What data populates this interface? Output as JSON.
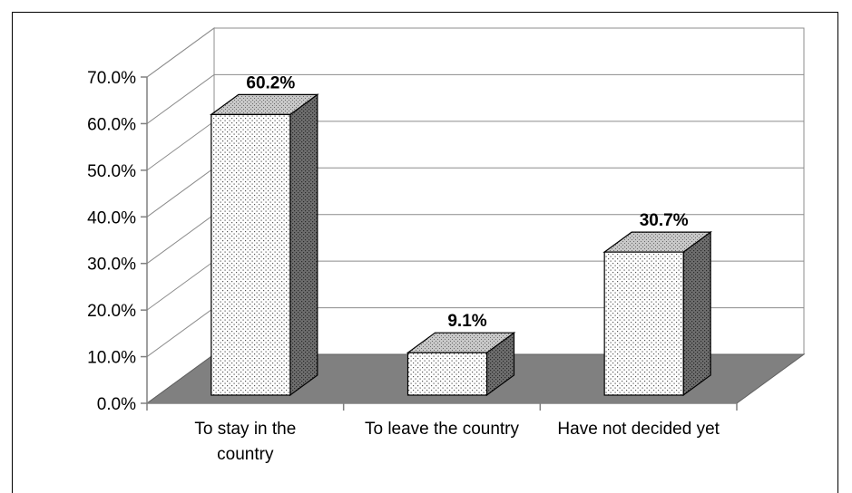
{
  "chart_data": {
    "type": "bar",
    "style": "3d-column",
    "categories": [
      "To stay in the country",
      "To leave the country",
      "Have not decided yet"
    ],
    "category_label_lines": [
      [
        "To stay in the",
        "country"
      ],
      [
        "To leave the country"
      ],
      [
        "Have not decided yet"
      ]
    ],
    "values": [
      60.2,
      9.1,
      30.7
    ],
    "data_labels": [
      "60.2%",
      "9.1%",
      "30.7%"
    ],
    "ylim": [
      0,
      70
    ],
    "yticks": [
      0,
      10,
      20,
      30,
      40,
      50,
      60,
      70
    ],
    "ytick_labels": [
      "0.0%",
      "10.0%",
      "20.0%",
      "30.0%",
      "40.0%",
      "50.0%",
      "60.0%",
      "70.0%"
    ],
    "title": "",
    "xlabel": "",
    "ylabel": "",
    "grid": true,
    "legend": "none",
    "colors": {
      "bar_front": "#ffffff",
      "bar_pattern": "#555555",
      "bar_top": "#c8c8c8",
      "bar_side": "#6e6e6e",
      "floor": "#808080",
      "gridline": "#8c8c8c",
      "axis": "#808080"
    }
  }
}
